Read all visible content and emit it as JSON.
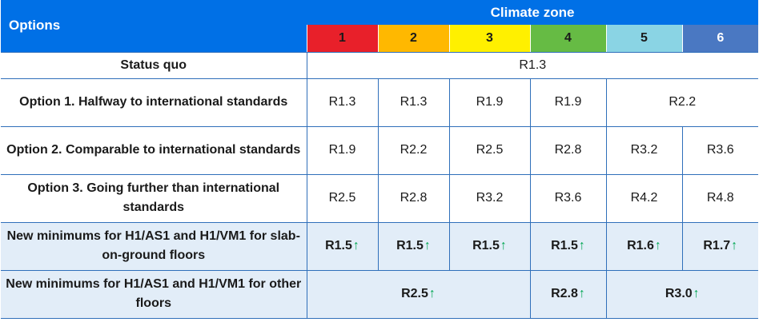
{
  "header": {
    "options_label": "Options",
    "climate_zone_label": "Climate zone",
    "zones": [
      {
        "label": "1",
        "color": "#e8202a",
        "text_dark": true
      },
      {
        "label": "2",
        "color": "#ffb800",
        "text_dark": true
      },
      {
        "label": "3",
        "color": "#fff000",
        "text_dark": true
      },
      {
        "label": "4",
        "color": "#66bb44",
        "text_dark": true
      },
      {
        "label": "5",
        "color": "#8ad4e4",
        "text_dark": true
      },
      {
        "label": "6",
        "color": "#4a78c2",
        "text_dark": false
      }
    ]
  },
  "rows": {
    "status_quo": {
      "label": "Status quo",
      "value": "R1.3"
    },
    "option1": {
      "label": "Option 1. Halfway to international standards",
      "values": [
        "R1.3",
        "R1.3",
        "R1.9",
        "R1.9"
      ],
      "merged_5_6": "R2.2"
    },
    "option2": {
      "label": "Option 2. Comparable to international standards",
      "values": [
        "R1.9",
        "R2.2",
        "R2.5",
        "R2.8",
        "R3.2",
        "R3.6"
      ]
    },
    "option3": {
      "label": "Option 3. Going further than international standards",
      "values": [
        "R2.5",
        "R2.8",
        "R3.2",
        "R3.6",
        "R4.2",
        "R4.8"
      ]
    },
    "slab": {
      "label": "New minimums for H1/AS1 and H1/VM1 for slab-on-ground floors",
      "values": [
        "R1.5",
        "R1.5",
        "R1.5",
        "R1.5",
        "R1.6",
        "R1.7"
      ]
    },
    "other": {
      "label": "New minimums for H1/AS1 and H1/VM1 for other floors",
      "zones_1_3": "R2.5",
      "zone_4": "R2.8",
      "zones_5_6": "R3.0"
    }
  },
  "icons": {
    "increase": "up-arrow-icon"
  },
  "colors": {
    "header_blue": "#0070e6",
    "highlight": "#e2edf8",
    "arrow_green": "#00a651",
    "grid_line": "#2f6fba"
  }
}
